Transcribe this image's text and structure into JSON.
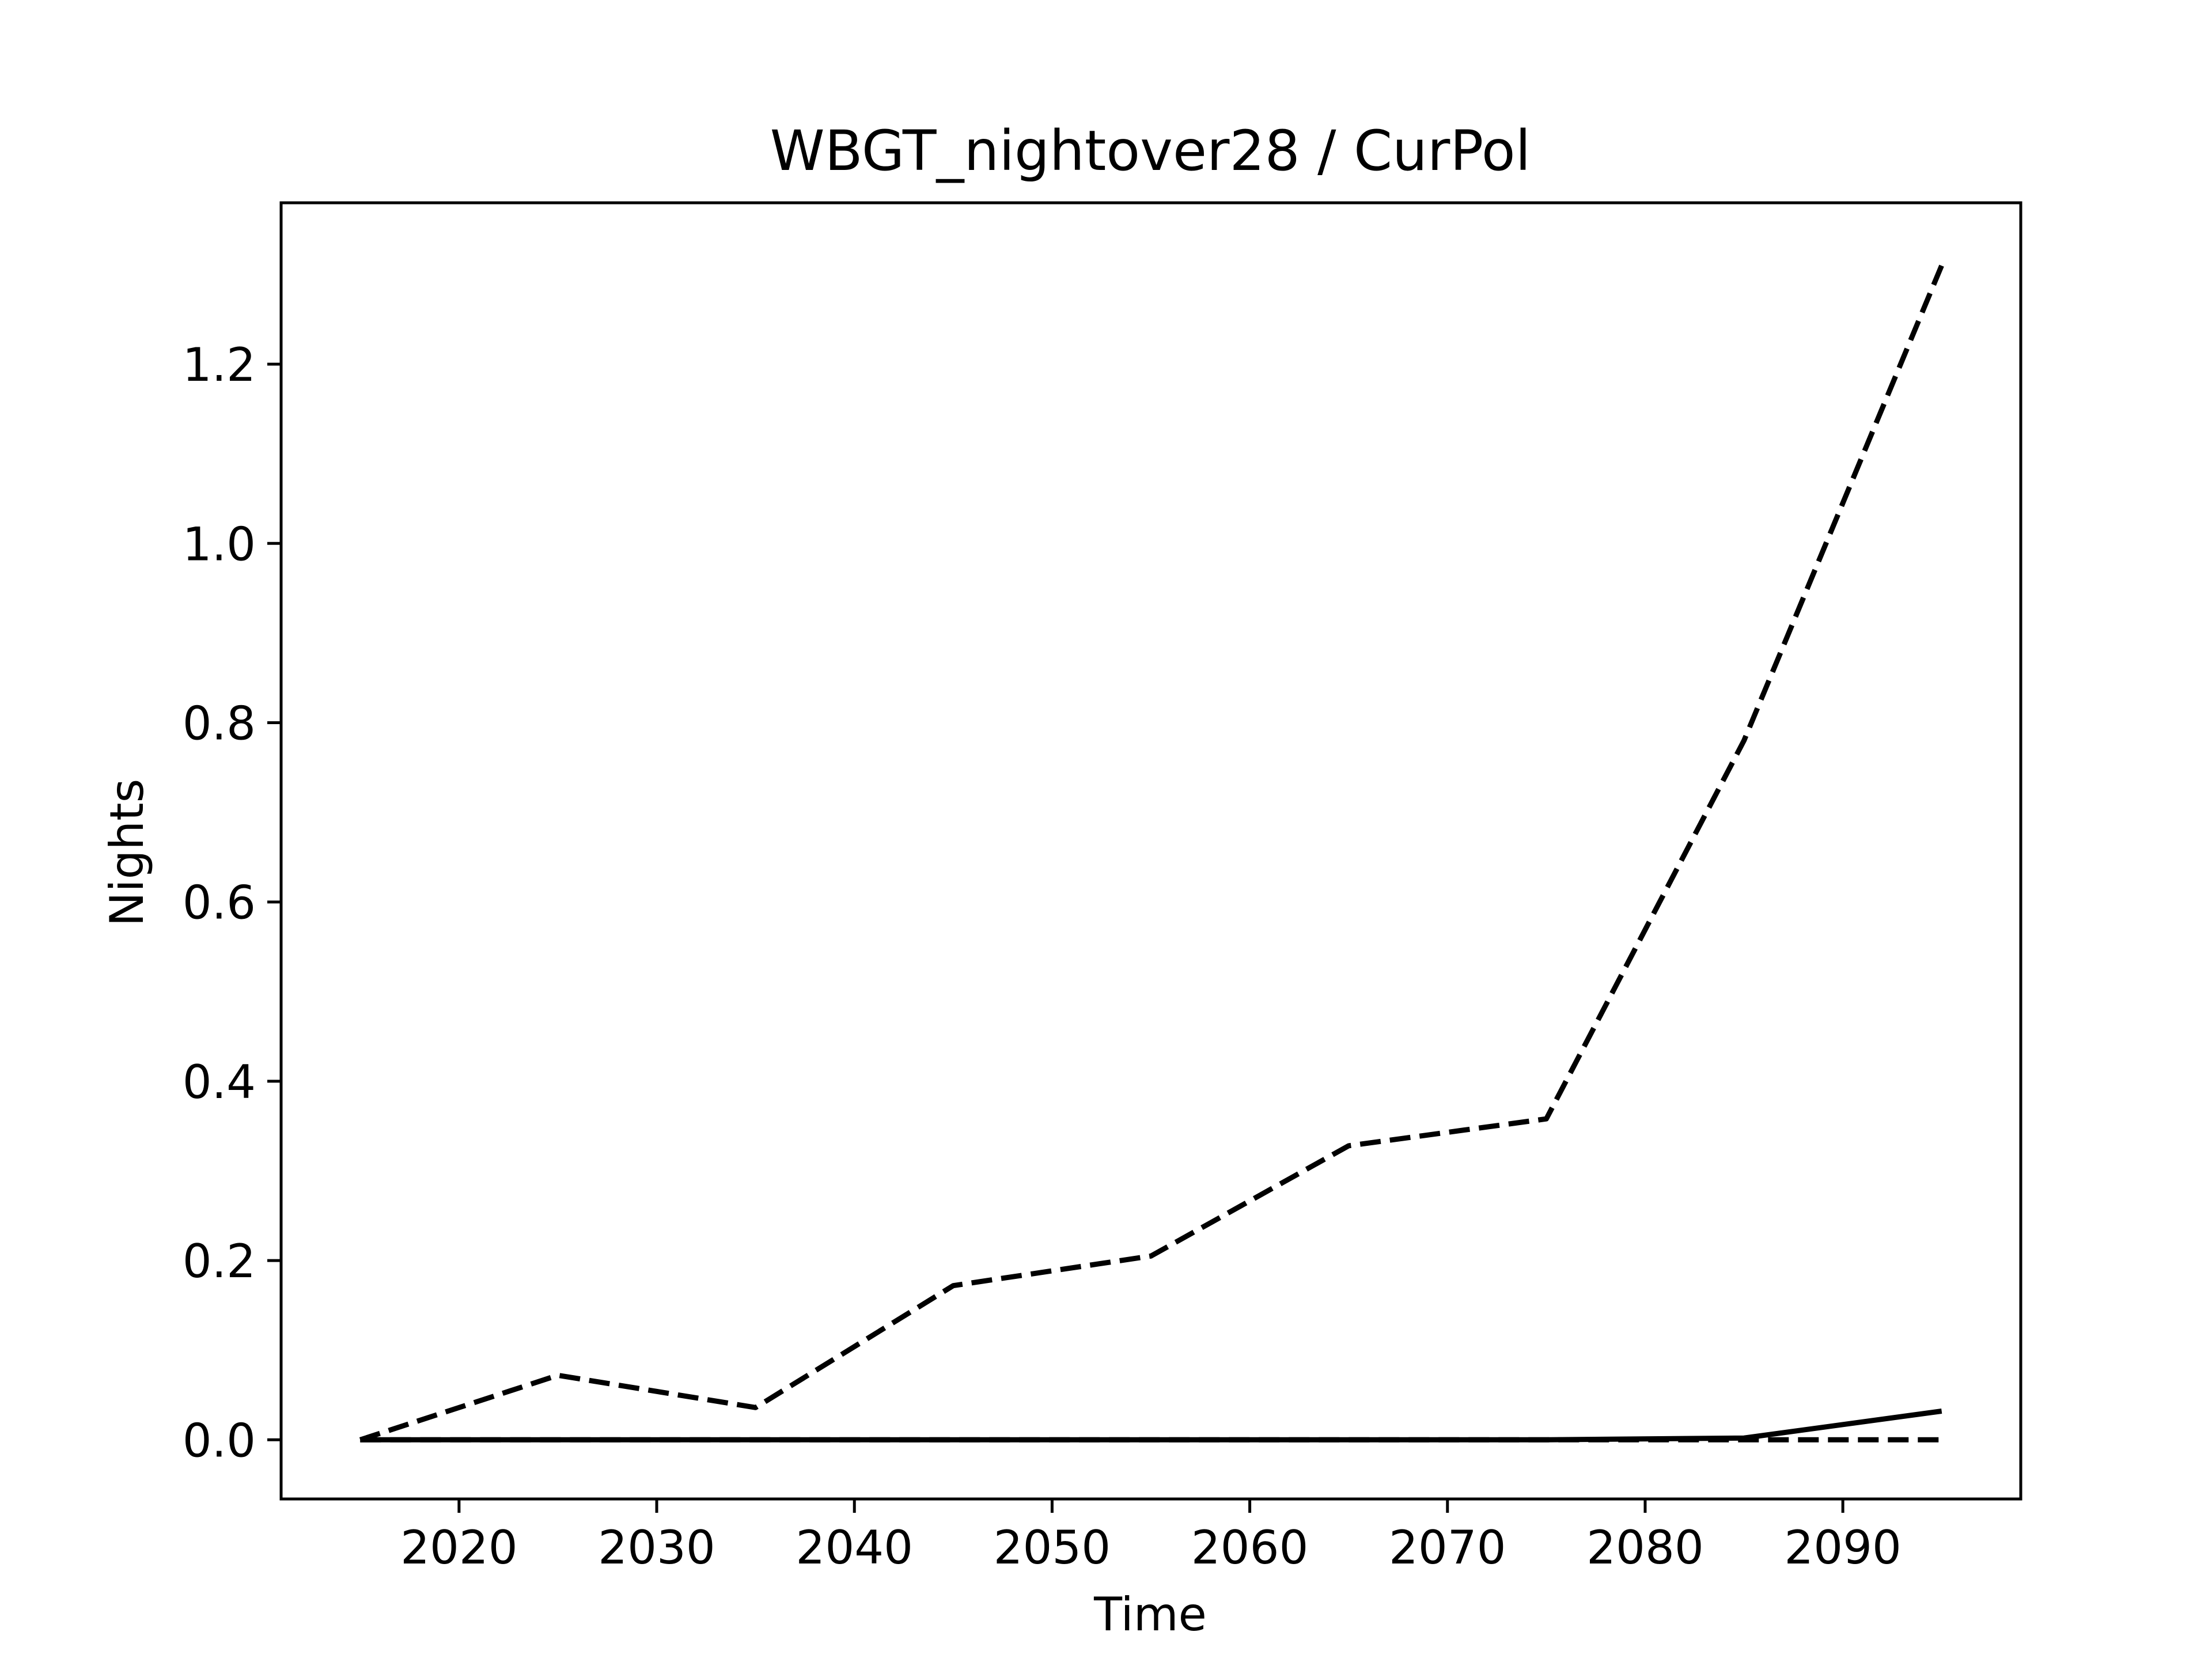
{
  "chart_data": {
    "type": "line",
    "title": "WBGT_nightover28 / CurPol",
    "xlabel": "Time",
    "ylabel": "Nights",
    "xlim": [
      2011,
      2099
    ],
    "ylim": [
      -0.066,
      1.38
    ],
    "x_ticks": [
      "2020",
      "2030",
      "2040",
      "2050",
      "2060",
      "2070",
      "2080",
      "2090"
    ],
    "y_ticks": [
      "0.0",
      "0.2",
      "0.4",
      "0.6",
      "0.8",
      "1.0",
      "1.2"
    ],
    "grid": false,
    "x": [
      2015,
      2025,
      2035,
      2045,
      2055,
      2065,
      2075,
      2085,
      2095
    ],
    "series": [
      {
        "style": "dashed",
        "color": "#000000",
        "values": [
          0.0,
          0.072,
          0.036,
          0.172,
          0.205,
          0.328,
          0.358,
          0.78,
          1.31
        ]
      },
      {
        "style": "solid",
        "color": "#000000",
        "values": [
          0.0,
          0.0,
          0.0,
          0.0,
          0.0,
          0.0,
          0.0,
          0.002,
          0.032
        ]
      },
      {
        "style": "dashed",
        "color": "#000000",
        "values": [
          0.0,
          0.0,
          0.0,
          0.0,
          0.0,
          0.0,
          0.0,
          0.0,
          0.0
        ]
      }
    ]
  }
}
